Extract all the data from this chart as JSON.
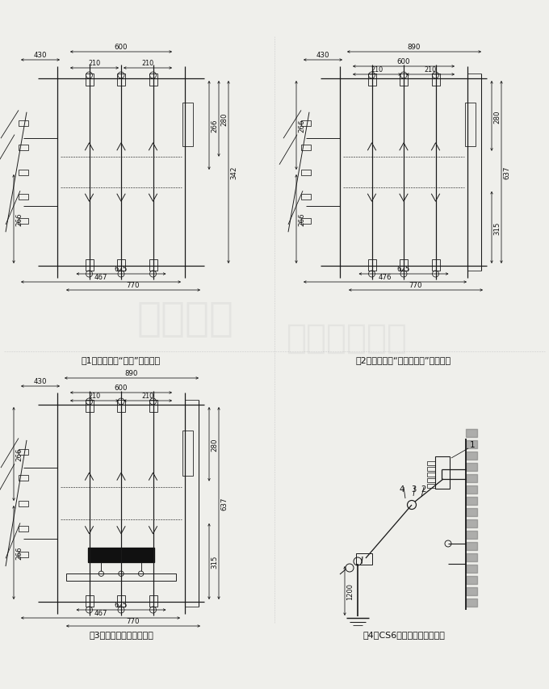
{
  "bg_color": "#efefeb",
  "line_color": "#1a1a1a",
  "dim_color": "#111111",
  "fig1_caption": "图1、无脊扣器“线路”负荷开关",
  "fig2_caption": "图2、无脊扣器“变压器保护”负荷开关",
  "fig3_caption": "图3、脊扣器撟击负荷开关",
  "fig4_caption": "图4、CS6操作机构安装示意图",
  "watermark1": "上海永鼎",
  "watermark2": "电气有限公司"
}
